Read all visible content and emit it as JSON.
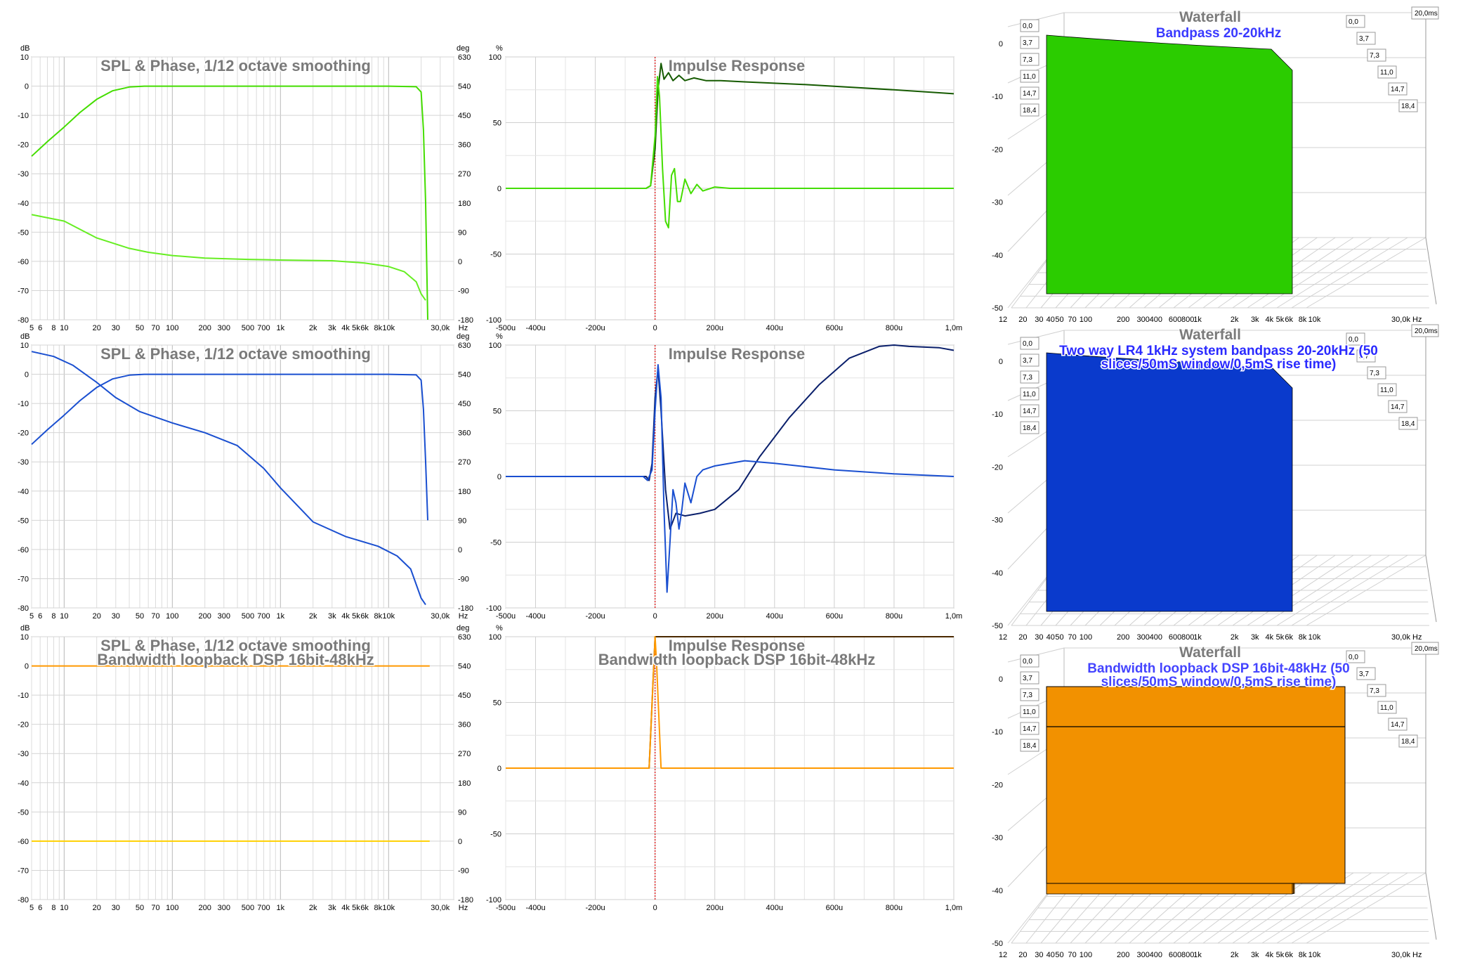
{
  "chart_data": [
    {
      "id": "spl1",
      "type": "line",
      "title": "SPL & Phase, 1/12 octave smoothing",
      "subtitle": "",
      "left_unit": "dB",
      "right_unit": "deg",
      "xunit": "Hz",
      "xlim": [
        5,
        40000
      ],
      "xscale": "log",
      "ylim": [
        -80,
        10
      ],
      "ylim_right": [
        -180,
        630
      ],
      "yticks": [
        "10",
        "0",
        "-10",
        "-20",
        "-30",
        "-40",
        "-50",
        "-60",
        "-70",
        "-80"
      ],
      "y2ticks": [
        "630",
        "540",
        "450",
        "360",
        "270",
        "180",
        "90",
        "0",
        "-90",
        "-180"
      ],
      "xticks": [
        {
          "v": 5,
          "label": "5"
        },
        {
          "v": 6,
          "label": "6"
        },
        {
          "v": 8,
          "label": "8"
        },
        {
          "v": 10,
          "label": "10"
        },
        {
          "v": 20,
          "label": "20"
        },
        {
          "v": 30,
          "label": "30"
        },
        {
          "v": 50,
          "label": "50"
        },
        {
          "v": 70,
          "label": "70"
        },
        {
          "v": 100,
          "label": "100"
        },
        {
          "v": 200,
          "label": "200"
        },
        {
          "v": 300,
          "label": "300"
        },
        {
          "v": 500,
          "label": "500"
        },
        {
          "v": 700,
          "label": "700"
        },
        {
          "v": 1000,
          "label": "1k"
        },
        {
          "v": 2000,
          "label": "2k"
        },
        {
          "v": 3000,
          "label": "3k"
        },
        {
          "v": 4000,
          "label": "4k"
        },
        {
          "v": 5000,
          "label": "5k"
        },
        {
          "v": 6000,
          "label": "6k"
        },
        {
          "v": 8000,
          "label": "8k"
        },
        {
          "v": 10000,
          "label": "10k"
        },
        {
          "v": 30000,
          "label": "30,0k"
        }
      ],
      "grid": true,
      "legend": "none",
      "series": [
        {
          "color": "#44dd00",
          "axis": "left",
          "x": [
            5,
            7,
            10,
            14,
            20,
            28,
            40,
            55,
            80,
            120,
            200,
            500,
            1000,
            5000,
            10000,
            18000,
            20000,
            21000,
            22000,
            23000
          ],
          "y": [
            -24,
            -19,
            -14,
            -9,
            -4.5,
            -1.6,
            -0.3,
            0,
            0,
            0,
            0,
            0,
            0,
            0,
            0,
            -0.2,
            -2,
            -15,
            -40,
            -80
          ]
        },
        {
          "color": "#66ee22",
          "axis": "right",
          "x": [
            5,
            10,
            20,
            40,
            60,
            100,
            200,
            500,
            1000,
            3000,
            6000,
            10000,
            14000,
            18000,
            20000,
            22000
          ],
          "y": [
            144,
            124,
            72,
            40,
            28,
            18,
            10,
            6,
            4,
            2,
            -5,
            -16,
            -32,
            -63,
            -100,
            -120
          ]
        }
      ]
    },
    {
      "id": "imp1",
      "type": "line",
      "title": "Impulse Response",
      "subtitle": "",
      "left_unit": "%",
      "xlim": [
        -500,
        1000
      ],
      "ylim": [
        -100,
        100
      ],
      "yticks": [
        "100",
        "50",
        "0",
        "-50",
        "-100"
      ],
      "xticks": [
        "-500u",
        "-400u",
        "-200u",
        "0",
        "200u",
        "400u",
        "600u",
        "800u",
        "1,0m"
      ],
      "series": [
        {
          "color": "#155a00",
          "x": [
            -500,
            -30,
            -15,
            0,
            10,
            20,
            30,
            45,
            60,
            80,
            100,
            130,
            170,
            220,
            300,
            500,
            800,
            1000
          ],
          "y": [
            0,
            0,
            2,
            30,
            75,
            95,
            83,
            88,
            82,
            86,
            82,
            84,
            82,
            82,
            81,
            79,
            75,
            72
          ]
        },
        {
          "color": "#44dd00",
          "x": [
            -500,
            -30,
            -15,
            0,
            8,
            15,
            25,
            35,
            45,
            55,
            65,
            75,
            85,
            100,
            120,
            140,
            160,
            200,
            250,
            1000
          ],
          "y": [
            0,
            0,
            2,
            40,
            85,
            70,
            15,
            -25,
            -30,
            10,
            15,
            -10,
            -10,
            7,
            -4,
            3,
            -2,
            1,
            0,
            0
          ]
        }
      ]
    },
    {
      "id": "wf1",
      "type": "area",
      "title": "Waterfall",
      "subtitle": "Bandpass 20-20kHz",
      "xticks": [
        "12",
        "20",
        "30",
        "40",
        "50",
        "70",
        "100",
        "200",
        "300",
        "400",
        "600",
        "800",
        "1k",
        "2k",
        "3k",
        "4k",
        "5k",
        "6k",
        "8k",
        "10k",
        "30,0k Hz"
      ],
      "yticks": [
        "0",
        "-10",
        "-20",
        "-30",
        "-40",
        "-50"
      ],
      "time_labels": [
        "0,0",
        "3,7",
        "7,3",
        "11,0",
        "14,7",
        "18,4"
      ],
      "time_end": "20,0ms",
      "color": "#2bcc00",
      "slices": 50
    },
    {
      "id": "spl2",
      "type": "line",
      "title": "SPL & Phase, 1/12 octave smoothing",
      "subtitle": "",
      "left_unit": "dB",
      "right_unit": "deg",
      "xunit": "Hz",
      "xlim": [
        5,
        40000
      ],
      "xscale": "log",
      "ylim": [
        -80,
        10
      ],
      "ylim_right": [
        -180,
        630
      ],
      "yticks": [
        "10",
        "0",
        "-10",
        "-20",
        "-30",
        "-40",
        "-50",
        "-60",
        "-70",
        "-80"
      ],
      "y2ticks": [
        "630",
        "540",
        "450",
        "360",
        "270",
        "180",
        "90",
        "0",
        "-90",
        "-180"
      ],
      "xticks": [
        {
          "v": 5,
          "label": "5"
        },
        {
          "v": 6,
          "label": "6"
        },
        {
          "v": 8,
          "label": "8"
        },
        {
          "v": 10,
          "label": "10"
        },
        {
          "v": 20,
          "label": "20"
        },
        {
          "v": 30,
          "label": "30"
        },
        {
          "v": 50,
          "label": "50"
        },
        {
          "v": 70,
          "label": "70"
        },
        {
          "v": 100,
          "label": "100"
        },
        {
          "v": 200,
          "label": "200"
        },
        {
          "v": 300,
          "label": "300"
        },
        {
          "v": 500,
          "label": "500"
        },
        {
          "v": 700,
          "label": "700"
        },
        {
          "v": 1000,
          "label": "1k"
        },
        {
          "v": 2000,
          "label": "2k"
        },
        {
          "v": 3000,
          "label": "3k"
        },
        {
          "v": 4000,
          "label": "4k"
        },
        {
          "v": 5000,
          "label": "5k"
        },
        {
          "v": 6000,
          "label": "6k"
        },
        {
          "v": 8000,
          "label": "8k"
        },
        {
          "v": 10000,
          "label": "10k"
        },
        {
          "v": 30000,
          "label": "30,0k"
        }
      ],
      "grid": true,
      "legend": "none",
      "series": [
        {
          "color": "#1a4fd0",
          "axis": "left",
          "x": [
            5,
            7,
            10,
            14,
            20,
            28,
            40,
            55,
            80,
            120,
            200,
            500,
            1000,
            5000,
            10000,
            18000,
            20000,
            21000,
            22000,
            23000
          ],
          "y": [
            -24,
            -19,
            -14,
            -9,
            -4.5,
            -1.6,
            -0.3,
            0,
            0,
            0,
            0,
            0,
            0,
            0,
            0,
            -0.2,
            -2,
            -12,
            -30,
            -50
          ]
        },
        {
          "color": "#1a4fd0",
          "axis": "right",
          "x": [
            5,
            8,
            12,
            20,
            30,
            50,
            100,
            200,
            400,
            700,
            1000,
            2000,
            4000,
            8000,
            12000,
            16000,
            20000,
            22000
          ],
          "y": [
            610,
            595,
            568,
            515,
            468,
            425,
            390,
            360,
            320,
            250,
            190,
            85,
            40,
            10,
            -20,
            -60,
            -150,
            -170
          ]
        }
      ]
    },
    {
      "id": "imp2",
      "type": "line",
      "title": "Impulse Response",
      "subtitle": "",
      "left_unit": "%",
      "xlim": [
        -500,
        1000
      ],
      "ylim": [
        -100,
        100
      ],
      "yticks": [
        "100",
        "50",
        "0",
        "-50",
        "-100"
      ],
      "xticks": [
        "-500u",
        "-400u",
        "-200u",
        "0",
        "200u",
        "400u",
        "600u",
        "800u",
        "1,0m"
      ],
      "series": [
        {
          "color": "#0a1f6b",
          "x": [
            -500,
            -30,
            -20,
            -10,
            0,
            10,
            20,
            35,
            50,
            70,
            100,
            150,
            200,
            280,
            350,
            450,
            550,
            650,
            750,
            800,
            850,
            950,
            1000
          ],
          "y": [
            0,
            0,
            -3,
            10,
            60,
            82,
            50,
            -10,
            -40,
            -28,
            -30,
            -28,
            -25,
            -10,
            15,
            45,
            70,
            90,
            99,
            100,
            99,
            98,
            96
          ]
        },
        {
          "color": "#1a4fd0",
          "x": [
            -500,
            -40,
            -25,
            -10,
            0,
            10,
            20,
            30,
            40,
            50,
            60,
            70,
            80,
            90,
            100,
            120,
            140,
            160,
            200,
            300,
            400,
            600,
            800,
            1000
          ],
          "y": [
            0,
            0,
            -3,
            5,
            50,
            85,
            60,
            -25,
            -88,
            -50,
            -10,
            -20,
            -40,
            -25,
            -5,
            -20,
            0,
            5,
            8,
            12,
            10,
            5,
            2,
            0
          ]
        }
      ]
    },
    {
      "id": "wf2",
      "type": "area",
      "title": "Waterfall",
      "subtitle": "Two way LR4 1kHz system bandpass 20-20kHz (50 slices/50mS window/0,5mS rise time)",
      "xticks": [
        "12",
        "20",
        "30",
        "40",
        "50",
        "70",
        "100",
        "200",
        "300",
        "400",
        "600",
        "800",
        "1k",
        "2k",
        "3k",
        "4k",
        "5k",
        "6k",
        "8k",
        "10k",
        "30,0k Hz"
      ],
      "yticks": [
        "0",
        "-10",
        "-20",
        "-30",
        "-40",
        "-50"
      ],
      "time_labels": [
        "0,0",
        "3,7",
        "7,3",
        "11,0",
        "14,7",
        "18,4"
      ],
      "time_end": "20,0ms",
      "color": "#0a3acc",
      "slices": 50
    },
    {
      "id": "spl3",
      "type": "line",
      "title": "SPL & Phase, 1/12 octave smoothing",
      "subtitle": "Bandwidth loopback DSP 16bit-48kHz",
      "left_unit": "dB",
      "right_unit": "deg",
      "xunit": "Hz",
      "xlim": [
        5,
        40000
      ],
      "xscale": "log",
      "ylim": [
        -80,
        10
      ],
      "ylim_right": [
        -180,
        630
      ],
      "yticks": [
        "10",
        "0",
        "-10",
        "-20",
        "-30",
        "-40",
        "-50",
        "-60",
        "-70",
        "-80"
      ],
      "y2ticks": [
        "630",
        "540",
        "450",
        "360",
        "270",
        "180",
        "90",
        "0",
        "-90",
        "-180"
      ],
      "xticks": [
        {
          "v": 5,
          "label": "5"
        },
        {
          "v": 6,
          "label": "6"
        },
        {
          "v": 8,
          "label": "8"
        },
        {
          "v": 10,
          "label": "10"
        },
        {
          "v": 20,
          "label": "20"
        },
        {
          "v": 30,
          "label": "30"
        },
        {
          "v": 50,
          "label": "50"
        },
        {
          "v": 70,
          "label": "70"
        },
        {
          "v": 100,
          "label": "100"
        },
        {
          "v": 200,
          "label": "200"
        },
        {
          "v": 300,
          "label": "300"
        },
        {
          "v": 500,
          "label": "500"
        },
        {
          "v": 700,
          "label": "700"
        },
        {
          "v": 1000,
          "label": "1k"
        },
        {
          "v": 2000,
          "label": "2k"
        },
        {
          "v": 3000,
          "label": "3k"
        },
        {
          "v": 4000,
          "label": "4k"
        },
        {
          "v": 5000,
          "label": "5k"
        },
        {
          "v": 6000,
          "label": "6k"
        },
        {
          "v": 8000,
          "label": "8k"
        },
        {
          "v": 10000,
          "label": "10k"
        },
        {
          "v": 30000,
          "label": "30,0k"
        }
      ],
      "grid": true,
      "legend": "none",
      "series": [
        {
          "color": "#ff9900",
          "axis": "left",
          "x": [
            5,
            24000
          ],
          "y": [
            0,
            0
          ]
        },
        {
          "color": "#ffd000",
          "axis": "right",
          "x": [
            5,
            24000
          ],
          "y": [
            0,
            0
          ]
        }
      ]
    },
    {
      "id": "imp3",
      "type": "line",
      "title": "Impulse Response",
      "subtitle": "Bandwidth loopback DSP 16bit-48kHz",
      "left_unit": "%",
      "xlim": [
        -500,
        1000
      ],
      "ylim": [
        -100,
        100
      ],
      "yticks": [
        "100",
        "50",
        "0",
        "-50",
        "-100"
      ],
      "xticks": [
        "-500u",
        "-400u",
        "-200u",
        "0",
        "200u",
        "400u",
        "600u",
        "800u",
        "1,0m"
      ],
      "series": [
        {
          "color": "#4a2800",
          "x": [
            -500,
            -20,
            0,
            5,
            12,
            1000
          ],
          "y": [
            0,
            0,
            100,
            100,
            100,
            100
          ]
        },
        {
          "color": "#ff9900",
          "x": [
            -500,
            -20,
            0,
            5,
            20,
            1000
          ],
          "y": [
            0,
            0,
            100,
            80,
            0,
            0
          ]
        }
      ]
    },
    {
      "id": "wf3",
      "type": "area",
      "title": "Waterfall",
      "subtitle": "Bandwidth loopback DSP 16bit-48kHz (50 slices/50mS window/0,5mS rise time)",
      "xticks": [
        "12",
        "20",
        "30",
        "40",
        "50",
        "70",
        "100",
        "200",
        "300",
        "400",
        "600",
        "800",
        "1k",
        "2k",
        "3k",
        "4k",
        "5k",
        "6k",
        "8k",
        "10k",
        "30,0k Hz"
      ],
      "yticks": [
        "0",
        "-10",
        "-20",
        "-30",
        "-40",
        "-50"
      ],
      "time_labels": [
        "0,0",
        "3,7",
        "7,3",
        "11,0",
        "14,7",
        "18,4"
      ],
      "time_end": "20,0ms",
      "color": "#f29100",
      "slices": 50
    }
  ]
}
